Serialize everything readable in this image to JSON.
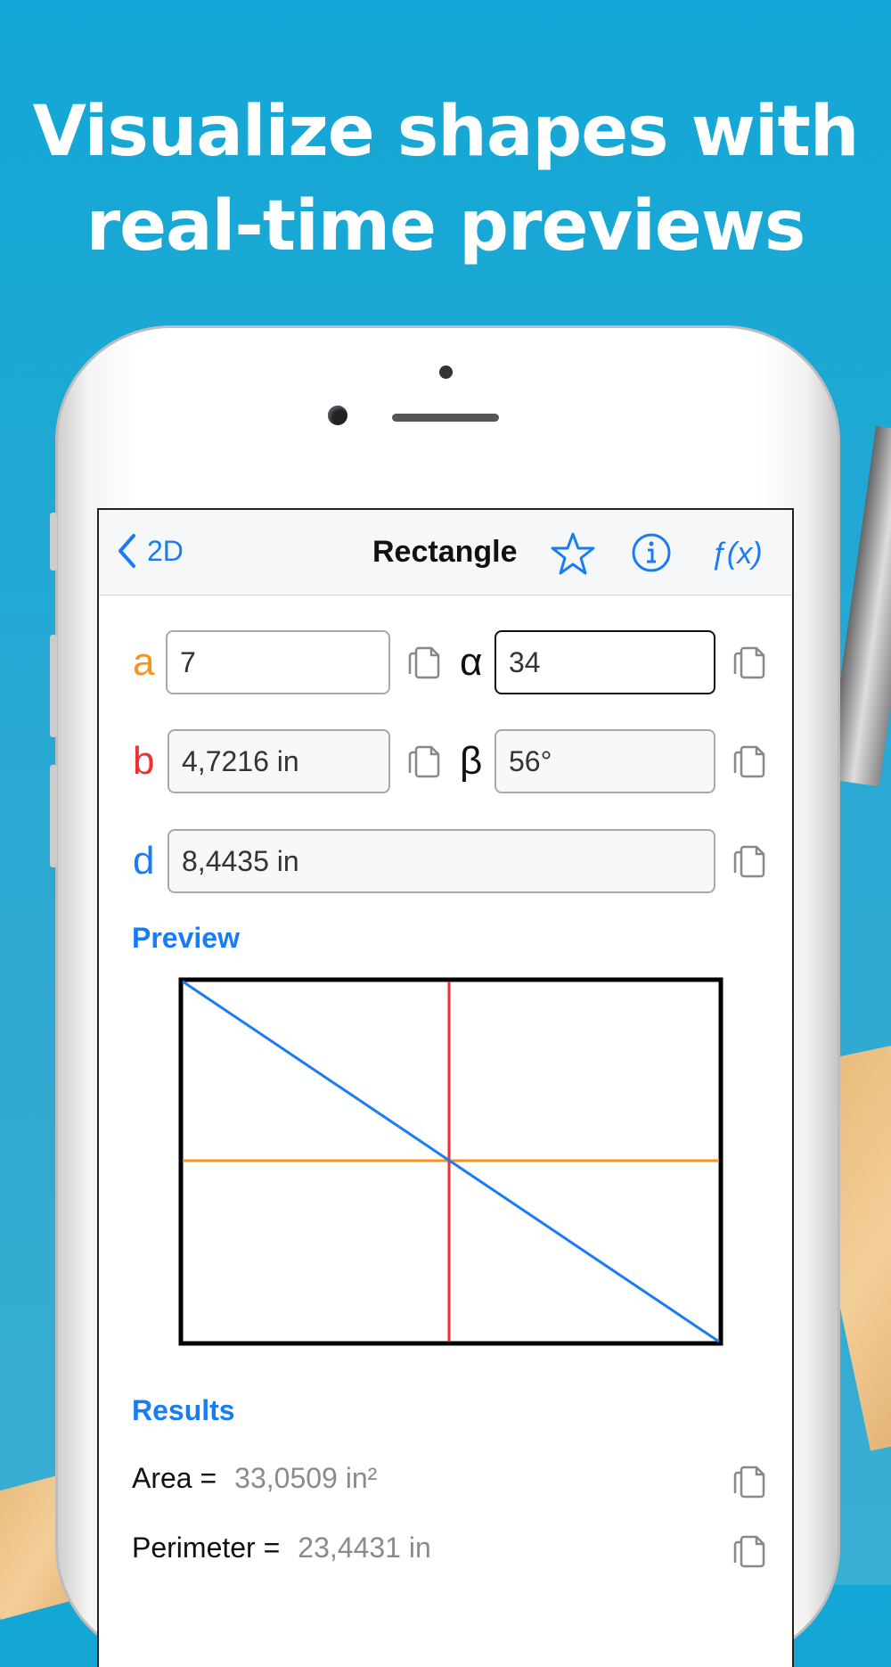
{
  "headline": {
    "line1": "Visualize shapes with",
    "line2": "real-time previews"
  },
  "nav": {
    "back_label": "2D",
    "title": "Rectangle",
    "icons": [
      "chevron-left-icon",
      "star-icon",
      "info-icon",
      "function-icon"
    ],
    "fx_label": "ƒ(x)"
  },
  "inputs": {
    "a": {
      "label": "a",
      "value": "7",
      "color": "#f7941d"
    },
    "alpha": {
      "label": "α",
      "value": "34"
    },
    "b": {
      "label": "b",
      "value": "4,7216 in",
      "color": "#ee3030"
    },
    "beta": {
      "label": "β",
      "value": "56°"
    },
    "d": {
      "label": "d",
      "value": "8,4435 in",
      "color": "#1a7cf5"
    }
  },
  "preview": {
    "title": "Preview",
    "colors": {
      "frame": "#000000",
      "a_line": "#f7941d",
      "b_line": "#ee3030",
      "diagonal": "#1a7cf5"
    }
  },
  "results": {
    "title": "Results",
    "items": [
      {
        "label": "Area =",
        "value": "33,0509 in²"
      },
      {
        "label": "Perimeter =",
        "value": "23,4431 in"
      }
    ]
  },
  "colors": {
    "background": "#12a7d6",
    "accent": "#1a7cf5"
  }
}
